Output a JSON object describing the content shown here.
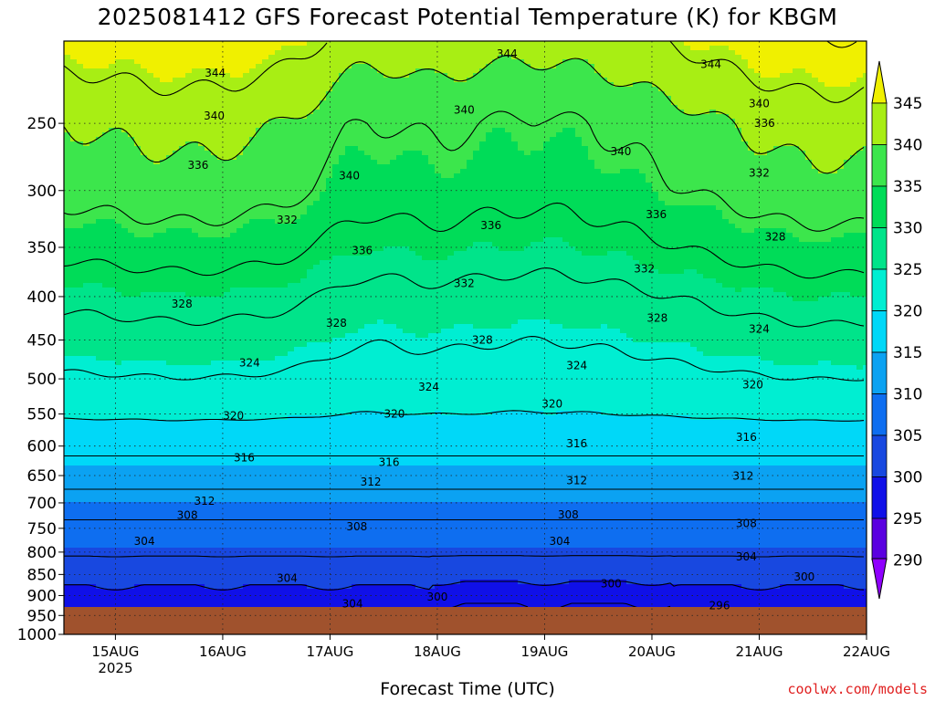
{
  "chart_data": {
    "type": "heatmap",
    "title": "2025081412 GFS Forecast Potential Temperature (K) for KBGM",
    "xlabel": "Forecast Time (UTC)",
    "ylabel": "",
    "credit": "coolwx.com/models",
    "x_ticks": [
      {
        "label": "15AUG",
        "sublabel": "2025",
        "t": 0
      },
      {
        "label": "16AUG",
        "t": 1
      },
      {
        "label": "17AUG",
        "t": 2
      },
      {
        "label": "18AUG",
        "t": 3
      },
      {
        "label": "19AUG",
        "t": 4
      },
      {
        "label": "20AUG",
        "t": 5
      },
      {
        "label": "21AUG",
        "t": 6
      },
      {
        "label": "22AUG",
        "t": 7
      }
    ],
    "xlim": [
      -0.48,
      7.0
    ],
    "y_ticks": [
      250,
      300,
      350,
      400,
      450,
      500,
      550,
      600,
      650,
      700,
      750,
      800,
      850,
      900,
      950,
      1000
    ],
    "ylim": [
      200,
      1000
    ],
    "y_scale": "log",
    "y_inverted": true,
    "grid": true,
    "levels": [
      290,
      295,
      300,
      305,
      310,
      315,
      320,
      325,
      330,
      335,
      340,
      345
    ],
    "colorbar_colors": [
      "#8f00ff",
      "#5a00e0",
      "#1010e8",
      "#1848e0",
      "#0e6ef0",
      "#0ba2f2",
      "#00d8f8",
      "#00eed2",
      "#00e48a",
      "#00dc58",
      "#3ce64c",
      "#a8ee14",
      "#f0f000"
    ],
    "profile": {
      "levels_hPa": [
        1000,
        950,
        900,
        850,
        800,
        750,
        700,
        650,
        600,
        550,
        500,
        450,
        400,
        350,
        300,
        250,
        200
      ],
      "theta_K": [
        290,
        296,
        299,
        302,
        304.5,
        307,
        310,
        314,
        317,
        320.5,
        323.5,
        326,
        329,
        333,
        337,
        340,
        346
      ]
    },
    "contour_labels": [
      {
        "t": 0.93,
        "p": 218,
        "value": 344
      },
      {
        "t": 3.65,
        "p": 207,
        "value": 344
      },
      {
        "t": 5.55,
        "p": 213,
        "value": 344
      },
      {
        "t": 0.92,
        "p": 245,
        "value": 340
      },
      {
        "t": 2.18,
        "p": 288,
        "value": 340
      },
      {
        "t": 3.25,
        "p": 241,
        "value": 340
      },
      {
        "t": 4.71,
        "p": 270,
        "value": 340
      },
      {
        "t": 6.0,
        "p": 237,
        "value": 340
      },
      {
        "t": 0.77,
        "p": 280,
        "value": 336
      },
      {
        "t": 2.3,
        "p": 353,
        "value": 336
      },
      {
        "t": 3.5,
        "p": 330,
        "value": 336
      },
      {
        "t": 5.04,
        "p": 320,
        "value": 336
      },
      {
        "t": 6.05,
        "p": 250,
        "value": 336
      },
      {
        "t": 1.6,
        "p": 325,
        "value": 332
      },
      {
        "t": 3.25,
        "p": 386,
        "value": 332
      },
      {
        "t": 4.93,
        "p": 371,
        "value": 332
      },
      {
        "t": 6.0,
        "p": 286,
        "value": 332
      },
      {
        "t": 0.62,
        "p": 408,
        "value": 328
      },
      {
        "t": 2.06,
        "p": 430,
        "value": 328
      },
      {
        "t": 3.42,
        "p": 450,
        "value": 328
      },
      {
        "t": 5.05,
        "p": 424,
        "value": 328
      },
      {
        "t": 6.15,
        "p": 340,
        "value": 328
      },
      {
        "t": 1.25,
        "p": 479,
        "value": 324
      },
      {
        "t": 2.92,
        "p": 511,
        "value": 324
      },
      {
        "t": 4.3,
        "p": 482,
        "value": 324
      },
      {
        "t": 6.0,
        "p": 437,
        "value": 324
      },
      {
        "t": 1.1,
        "p": 553,
        "value": 320
      },
      {
        "t": 2.6,
        "p": 550,
        "value": 320
      },
      {
        "t": 4.07,
        "p": 535,
        "value": 320
      },
      {
        "t": 5.94,
        "p": 508,
        "value": 320
      },
      {
        "t": 1.2,
        "p": 619,
        "value": 316
      },
      {
        "t": 2.55,
        "p": 627,
        "value": 316
      },
      {
        "t": 4.3,
        "p": 596,
        "value": 316
      },
      {
        "t": 5.88,
        "p": 586,
        "value": 316
      },
      {
        "t": 0.83,
        "p": 697,
        "value": 312
      },
      {
        "t": 2.38,
        "p": 661,
        "value": 312
      },
      {
        "t": 4.3,
        "p": 659,
        "value": 312
      },
      {
        "t": 5.85,
        "p": 651,
        "value": 312
      },
      {
        "t": 0.67,
        "p": 724,
        "value": 308
      },
      {
        "t": 2.25,
        "p": 747,
        "value": 308
      },
      {
        "t": 4.22,
        "p": 723,
        "value": 308
      },
      {
        "t": 5.88,
        "p": 740,
        "value": 308
      },
      {
        "t": 0.27,
        "p": 777,
        "value": 304
      },
      {
        "t": 1.6,
        "p": 859,
        "value": 304
      },
      {
        "t": 2.21,
        "p": 920,
        "value": 304
      },
      {
        "t": 4.14,
        "p": 777,
        "value": 304
      },
      {
        "t": 5.88,
        "p": 810,
        "value": 304
      },
      {
        "t": 3.0,
        "p": 904,
        "value": 300
      },
      {
        "t": 4.62,
        "p": 872,
        "value": 300
      },
      {
        "t": 6.42,
        "p": 856,
        "value": 300
      },
      {
        "t": 5.63,
        "p": 925,
        "value": 296
      }
    ]
  }
}
